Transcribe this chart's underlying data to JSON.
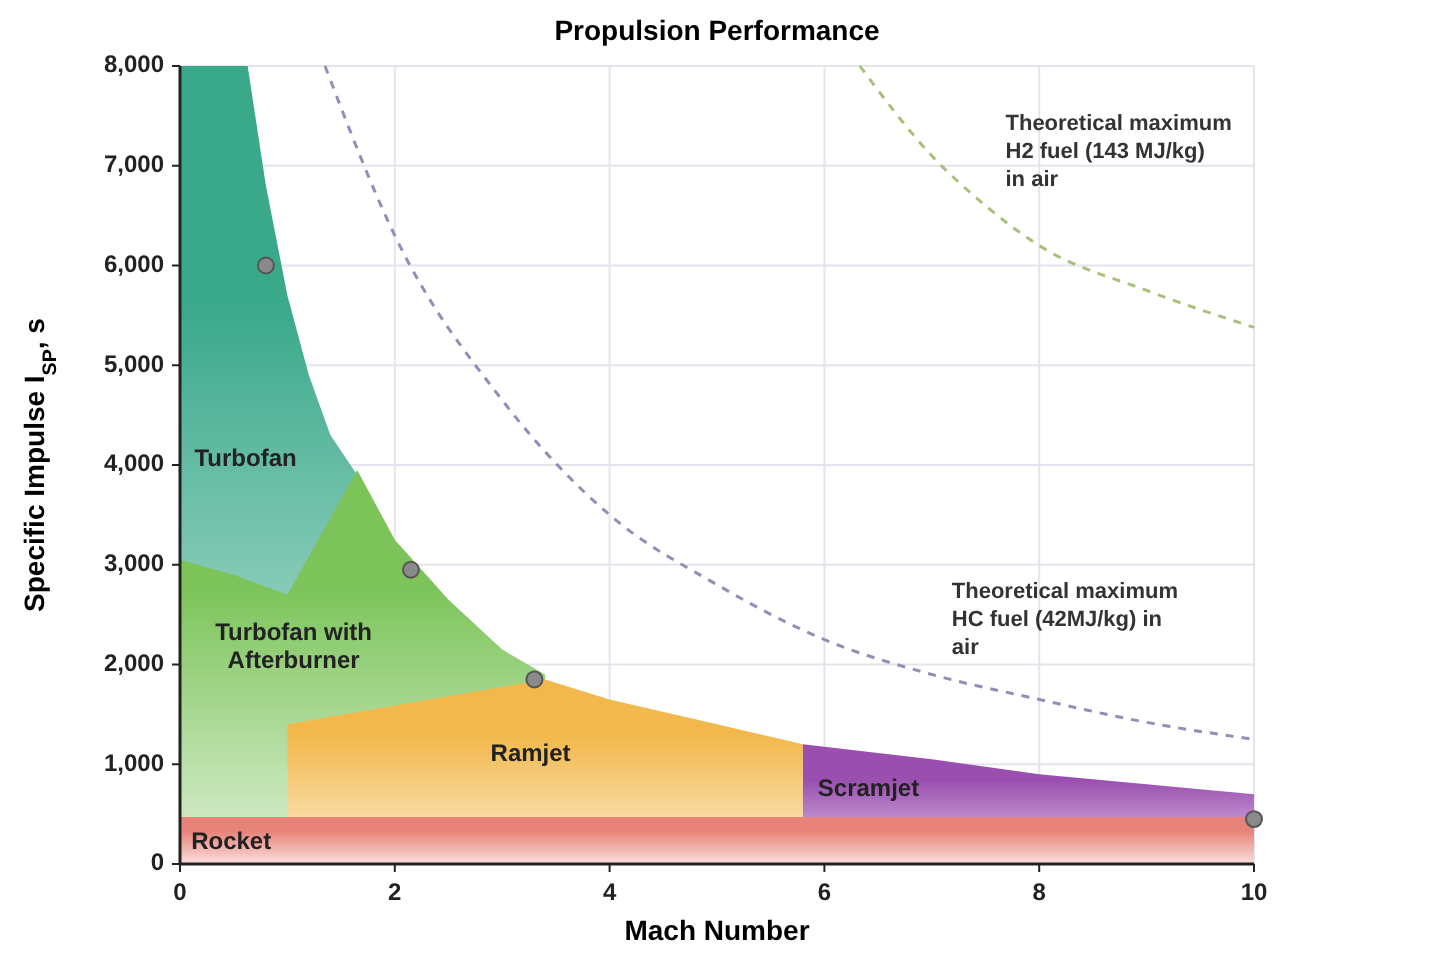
{
  "chart_data": {
    "type": "area",
    "title": "Propulsion Performance",
    "xlabel": "Mach Number",
    "ylabel": "Specific Impulse I$_{SP}$, s",
    "xlim": [
      0,
      10
    ],
    "ylim": [
      0,
      8000
    ],
    "xticks": [
      0,
      2,
      4,
      6,
      8,
      10
    ],
    "yticks": [
      0,
      {
        "value": 1000,
        "label": "1,000"
      },
      {
        "value": 2000,
        "label": "2,000"
      },
      {
        "value": 3000,
        "label": "3,000"
      },
      {
        "value": 4000,
        "label": "4,000"
      },
      {
        "value": 5000,
        "label": "5,000"
      },
      {
        "value": 6000,
        "label": "6,000"
      },
      {
        "value": 7000,
        "label": "7,000"
      },
      {
        "value": 8000,
        "label": "8,000"
      }
    ],
    "grid": true,
    "legend": false,
    "series": [
      {
        "name": "Turbofan",
        "color": "#3aa98a",
        "x": [
          0,
          0.63,
          0.8,
          1,
          1.2,
          1.4,
          1.65
        ],
        "values": [
          8000,
          8000,
          6800,
          5700,
          4900,
          4300,
          3900
        ]
      },
      {
        "name": "Turbofan with Afterburner",
        "color": "#7cc45a",
        "x": [
          0,
          0.5,
          1,
          1.65,
          2,
          2.5,
          3,
          3.4
        ],
        "values": [
          3050,
          2900,
          2700,
          3950,
          3250,
          2650,
          2150,
          1900
        ]
      },
      {
        "name": "Ramjet",
        "color": "#f2b84b",
        "x": [
          1,
          3.4,
          4,
          5,
          5.8
        ],
        "values": [
          1400,
          1850,
          1650,
          1400,
          1200
        ]
      },
      {
        "name": "Scramjet",
        "color": "#9a4fb0",
        "x": [
          5.8,
          7,
          8,
          9,
          10
        ],
        "values": [
          1200,
          1050,
          900,
          800,
          700
        ]
      },
      {
        "name": "Rocket",
        "color": "#e8837a",
        "x": [
          0,
          10
        ],
        "values": [
          470,
          470
        ]
      },
      {
        "name": "Theoretical maximum HC fuel (42MJ/kg) in air",
        "type": "line",
        "line_style": "dashed",
        "marker": "none",
        "color": "#9a8ab8",
        "x": [
          1.35,
          2,
          3,
          4,
          5,
          6,
          7,
          8,
          9,
          10
        ],
        "values": [
          8000,
          6300,
          4650,
          3500,
          2800,
          2250,
          1900,
          1650,
          1420,
          1250
        ]
      },
      {
        "name": "Theoretical maximum H2 fuel (143 MJ/kg) in air",
        "type": "line",
        "line_style": "dashed",
        "marker": "none",
        "color": "#a8c07a",
        "x": [
          6.33,
          7,
          7.5,
          8,
          9,
          10
        ],
        "values": [
          8000,
          7100,
          6600,
          6200,
          5750,
          5380
        ]
      },
      {
        "type": "scatter",
        "marker": "circle",
        "color": "#8a8a8a",
        "x": [
          0.8,
          2.15,
          3.3,
          10
        ],
        "values": [
          6000,
          2950,
          1850,
          450
        ]
      }
    ]
  }
}
